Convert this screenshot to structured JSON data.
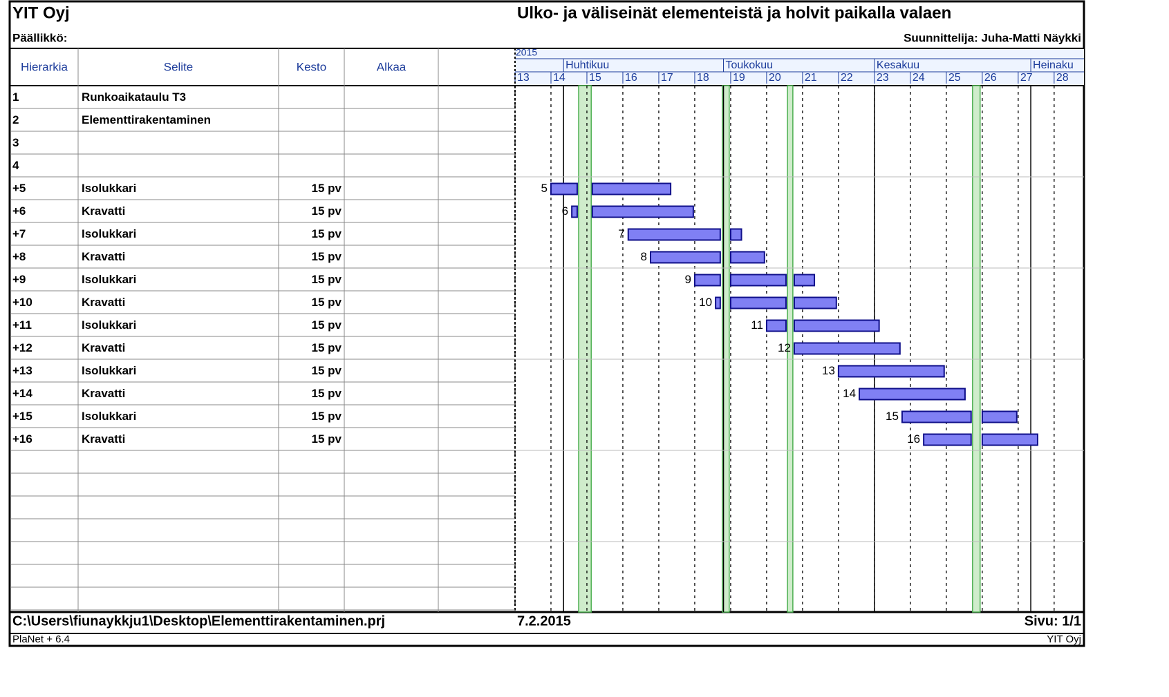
{
  "header": {
    "company": "YIT Oyj",
    "manager": "Päällikkö:",
    "title": "Ulko- ja väliseinät elementeistä ja holvit paikalla valaen",
    "designer": "Suunnittelija: Juha-Matti Näykki"
  },
  "table": {
    "columns": [
      "Hierarkia",
      "Selite",
      "Kesto",
      "Alkaa"
    ],
    "rows": [
      {
        "hierarchy": "1",
        "description": "Runkoaikataulu T3"
      },
      {
        "hierarchy": "2",
        "description": "Elementtirakentaminen"
      },
      {
        "hierarchy": "3"
      },
      {
        "hierarchy": "4"
      },
      {
        "hierarchy": "+5",
        "description": "Isolukkari",
        "duration": "15 pv",
        "bar_label": "5",
        "segments": [
          [
            14.0,
            14.73
          ],
          [
            15.15,
            17.33
          ]
        ]
      },
      {
        "hierarchy": "+6",
        "description": "Kravatti",
        "duration": "15 pv",
        "bar_label": "6",
        "segments": [
          [
            14.58,
            14.73
          ],
          [
            15.15,
            17.96
          ]
        ]
      },
      {
        "hierarchy": "+7",
        "description": "Isolukkari",
        "duration": "15 pv",
        "bar_label": "7",
        "segments": [
          [
            16.15,
            18.71
          ],
          [
            19.0,
            19.3
          ]
        ]
      },
      {
        "hierarchy": "+8",
        "description": "Kravatti",
        "duration": "15 pv",
        "bar_label": "8",
        "segments": [
          [
            16.77,
            18.71
          ],
          [
            19.0,
            19.94
          ]
        ]
      },
      {
        "hierarchy": "+9",
        "description": "Isolukkari",
        "duration": "15 pv",
        "bar_label": "9",
        "segments": [
          [
            18.0,
            18.71
          ],
          [
            19.0,
            20.54
          ],
          [
            20.77,
            21.33
          ]
        ]
      },
      {
        "hierarchy": "+10",
        "description": "Kravatti",
        "duration": "15 pv",
        "bar_label": "10",
        "segments": [
          [
            18.58,
            18.71
          ],
          [
            19.0,
            20.54
          ],
          [
            20.77,
            21.94
          ]
        ]
      },
      {
        "hierarchy": "+11",
        "description": "Isolukkari",
        "duration": "15 pv",
        "bar_label": "11",
        "segments": [
          [
            20.0,
            20.54
          ],
          [
            20.77,
            23.13
          ]
        ]
      },
      {
        "hierarchy": "+12",
        "description": "Kravatti",
        "duration": "15 pv",
        "bar_label": "12",
        "segments": [
          [
            20.77,
            23.71
          ]
        ]
      },
      {
        "hierarchy": "+13",
        "description": "Isolukkari",
        "duration": "15 pv",
        "bar_label": "13",
        "segments": [
          [
            22.0,
            24.94
          ]
        ]
      },
      {
        "hierarchy": "+14",
        "description": "Kravatti",
        "duration": "15 pv",
        "bar_label": "14",
        "segments": [
          [
            22.58,
            25.52
          ]
        ]
      },
      {
        "hierarchy": "+15",
        "description": "Isolukkari",
        "duration": "15 pv",
        "bar_label": "15",
        "segments": [
          [
            23.77,
            25.69
          ],
          [
            26.0,
            26.96
          ]
        ]
      },
      {
        "hierarchy": "+16",
        "description": "Kravatti",
        "duration": "15 pv",
        "bar_label": "16",
        "segments": [
          [
            24.37,
            25.69
          ],
          [
            26.0,
            27.54
          ]
        ]
      }
    ]
  },
  "gantt": {
    "year": "2015",
    "xlim": [
      13,
      28.83
    ],
    "weeks": [
      13,
      14,
      15,
      16,
      17,
      18,
      19,
      20,
      21,
      22,
      23,
      24,
      25,
      26,
      27,
      28
    ],
    "months": [
      {
        "label": "Huhtikuu",
        "start": 14.35
      },
      {
        "label": "Toukokuu",
        "start": 18.8
      },
      {
        "label": "Kesakuu",
        "start": 23.0
      },
      {
        "label": "Heinaku",
        "start": 27.35
      }
    ],
    "holidays": [
      [
        14.77,
        15.12
      ],
      [
        18.77,
        18.96
      ],
      [
        20.58,
        20.73
      ],
      [
        25.73,
        25.94
      ]
    ],
    "bar_color": "#8080f4",
    "bar_border": "#10108a",
    "holiday_color": "#cfeccb"
  },
  "footer": {
    "path": "C:\\Users\\fiunaykkju1\\Desktop\\Elementtirakentaminen.prj",
    "date": "7.2.2015",
    "page": "Sivu: 1/1",
    "software": "PlaNet + 6.4",
    "company": "YIT Oyj"
  }
}
